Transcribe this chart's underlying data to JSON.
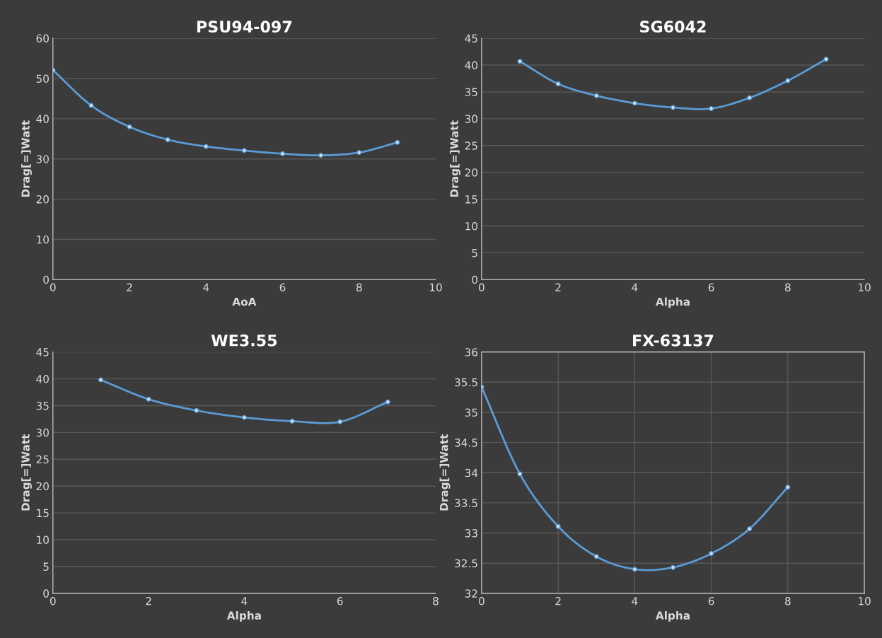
{
  "chart_data": [
    {
      "type": "line",
      "title": "PSU94-097",
      "xlabel": "AoA",
      "ylabel": "Drag[=]Watt",
      "x": [
        0,
        1,
        2,
        3,
        4,
        5,
        6,
        7,
        8,
        9
      ],
      "series": [
        {
          "color": "#5b9bd5",
          "values": [
            52.1,
            43.3,
            38.0,
            34.8,
            33.1,
            32.1,
            31.3,
            30.9,
            31.6,
            34.1
          ]
        }
      ],
      "xlim": [
        0,
        10
      ],
      "xticks": [
        0,
        2,
        4,
        6,
        8,
        10
      ],
      "ylim": [
        0,
        60
      ],
      "yticks": [
        0,
        10,
        20,
        30,
        40,
        50,
        60
      ],
      "grid": "y",
      "marker": "circle",
      "line_style": "solid"
    },
    {
      "type": "line",
      "title": "SG6042",
      "xlabel": "Alpha",
      "ylabel": "Drag[=]Watt",
      "x": [
        1,
        2,
        3,
        4,
        5,
        6,
        7,
        8,
        9
      ],
      "series": [
        {
          "color": "#5b9bd5",
          "values": [
            40.7,
            36.5,
            34.3,
            32.9,
            32.1,
            31.9,
            33.9,
            37.1,
            41.1
          ]
        }
      ],
      "xlim": [
        0,
        10
      ],
      "xticks": [
        0,
        2,
        4,
        6,
        8,
        10
      ],
      "ylim": [
        0,
        45
      ],
      "yticks": [
        0,
        5,
        10,
        15,
        20,
        25,
        30,
        35,
        40,
        45
      ],
      "grid": "y",
      "marker": "circle",
      "line_style": "solid"
    },
    {
      "type": "line",
      "title": "WE3.55",
      "xlabel": "Alpha",
      "ylabel": "Drag[=]Watt",
      "x": [
        1,
        2,
        3,
        4,
        5,
        6,
        7
      ],
      "series": [
        {
          "color": "#5b9bd5",
          "values": [
            39.8,
            36.2,
            34.1,
            32.8,
            32.1,
            32.0,
            35.7
          ]
        }
      ],
      "xlim": [
        0,
        8
      ],
      "xticks": [
        0,
        2,
        4,
        6,
        8
      ],
      "ylim": [
        0,
        45
      ],
      "yticks": [
        0,
        5,
        10,
        15,
        20,
        25,
        30,
        35,
        40,
        45
      ],
      "grid": "y",
      "marker": "circle",
      "line_style": "solid"
    },
    {
      "type": "line",
      "title": "FX-63137",
      "xlabel": "Alpha",
      "ylabel": "Drag[=]Watt",
      "x": [
        0,
        1,
        2,
        3,
        4,
        5,
        6,
        7,
        8
      ],
      "series": [
        {
          "color": "#5b9bd5",
          "values": [
            35.42,
            33.98,
            33.11,
            32.61,
            32.4,
            32.43,
            32.66,
            33.07,
            33.76
          ]
        }
      ],
      "xlim": [
        0,
        10
      ],
      "xticks": [
        0,
        2,
        4,
        6,
        8,
        10
      ],
      "ylim": [
        32,
        36
      ],
      "yticks": [
        32,
        32.5,
        33,
        33.5,
        34,
        34.5,
        35,
        35.5,
        36
      ],
      "grid": true,
      "marker": "circle",
      "line_style": "solid"
    }
  ]
}
